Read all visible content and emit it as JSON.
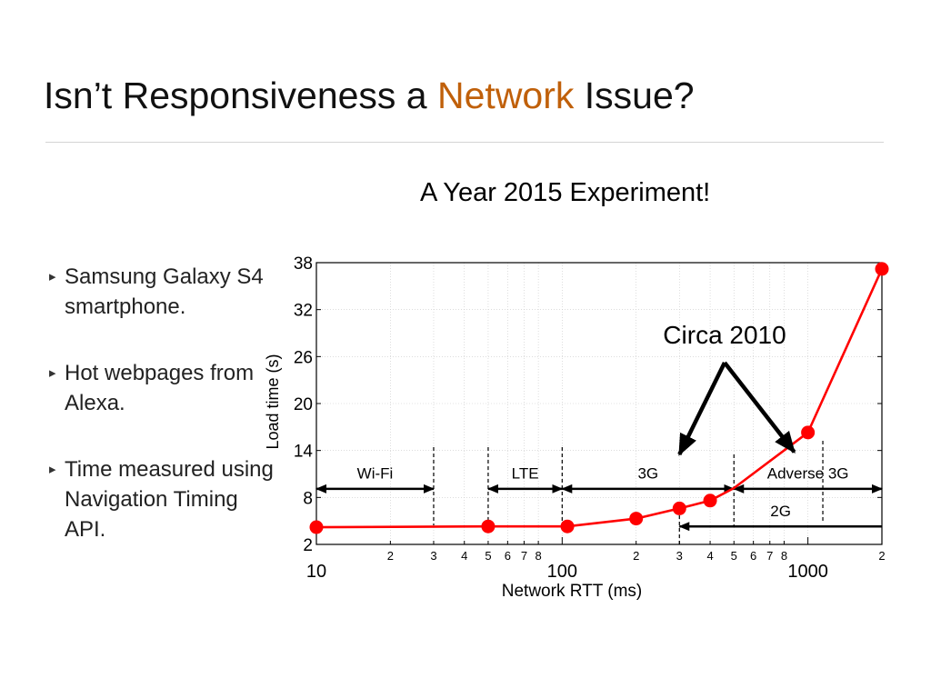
{
  "slide": {
    "title_pre": "Isn’t Responsiveness a ",
    "title_accent": "Network",
    "title_post": " Issue?",
    "subtitle": "A Year 2015 Experiment!",
    "bullets": [
      "Samsung Galaxy S4 smartphone.",
      "Hot webpages from Alexa.",
      "Time measured using Navigation Timing API."
    ],
    "bullet_marker": "▸"
  },
  "colors": {
    "accent": "#c0600a",
    "series": "#ff0000",
    "rule": "#d4d4d4"
  },
  "chart_data": {
    "type": "line",
    "xscale": "log",
    "xlabel": "Network RTT (ms)",
    "ylabel": "Load time (s)",
    "xlim": [
      10,
      2000
    ],
    "ylim": [
      2,
      38
    ],
    "yticks": [
      2,
      8,
      14,
      20,
      26,
      32,
      38
    ],
    "x_major_ticks": [
      10,
      100,
      1000
    ],
    "x_minor_ticks": [
      {
        "value": 20,
        "label": "2"
      },
      {
        "value": 30,
        "label": "3"
      },
      {
        "value": 40,
        "label": "4"
      },
      {
        "value": 50,
        "label": "5"
      },
      {
        "value": 60,
        "label": "6"
      },
      {
        "value": 70,
        "label": "7"
      },
      {
        "value": 80,
        "label": "8"
      },
      {
        "value": 200,
        "label": "2"
      },
      {
        "value": 300,
        "label": "3"
      },
      {
        "value": 400,
        "label": "4"
      },
      {
        "value": 500,
        "label": "5"
      },
      {
        "value": 600,
        "label": "6"
      },
      {
        "value": 700,
        "label": "7"
      },
      {
        "value": 800,
        "label": "8"
      },
      {
        "value": 2000,
        "label": "2"
      }
    ],
    "grid": true,
    "series": [
      {
        "points": [
          {
            "x": 10,
            "y": 4.2
          },
          {
            "x": 50,
            "y": 4.3
          },
          {
            "x": 105,
            "y": 4.3
          },
          {
            "x": 200,
            "y": 5.3
          },
          {
            "x": 300,
            "y": 6.6
          },
          {
            "x": 400,
            "y": 7.6
          },
          {
            "x": 1000,
            "y": 16.3
          },
          {
            "x": 2000,
            "y": 37.2
          }
        ],
        "markers_at": [
          0,
          1,
          2,
          3,
          4,
          5,
          6,
          7
        ]
      }
    ],
    "line_waypoints": [
      {
        "x": 500,
        "y": 9.2
      }
    ],
    "regions": [
      {
        "label": "Wi-Fi",
        "x_from": 10,
        "x_to": 30,
        "y": 9.1,
        "y_label": 11.1
      },
      {
        "label": "LTE",
        "x_from": 50,
        "x_to": 100,
        "y": 9.1,
        "y_label": 11.1
      },
      {
        "label": "3G",
        "x_from": 100,
        "x_to": 500,
        "y": 9.1,
        "y_label": 11.1
      },
      {
        "label": "Adverse 3G",
        "x_from": 500,
        "x_to": 2000,
        "y": 9.1,
        "y_label": 11.1
      },
      {
        "label": "2G",
        "x_from": 300,
        "x_to": 2000,
        "y": 4.3,
        "y_label": 6.3
      }
    ],
    "region_boundaries": [
      30,
      50,
      100,
      500,
      300,
      1150
    ],
    "annotation": {
      "text": "Circa 2010",
      "arrows_to": [
        {
          "x": 300,
          "y": 13.5
        },
        {
          "x": 880,
          "y": 13.8
        }
      ]
    }
  }
}
